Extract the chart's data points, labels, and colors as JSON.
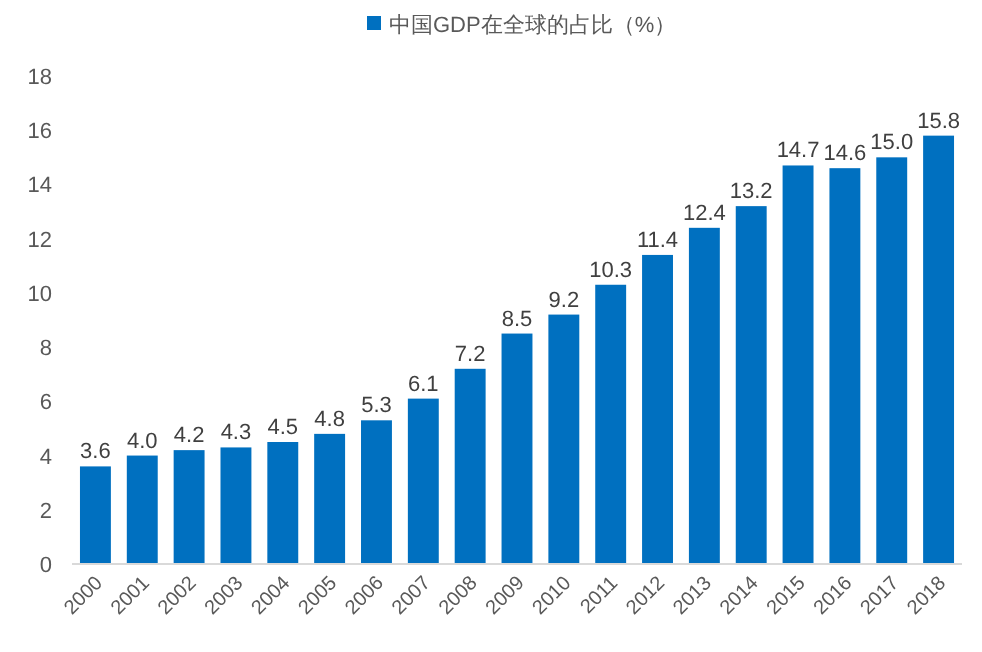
{
  "chart_data": {
    "type": "bar",
    "categories": [
      "2000",
      "2001",
      "2002",
      "2003",
      "2004",
      "2005",
      "2006",
      "2007",
      "2008",
      "2009",
      "2010",
      "2011",
      "2012",
      "2013",
      "2014",
      "2015",
      "2016",
      "2017",
      "2018"
    ],
    "series": [
      {
        "name": "中国GDP在全球的占比（%）",
        "color": "#0070c0",
        "values": [
          3.6,
          4.0,
          4.2,
          4.3,
          4.5,
          4.8,
          5.3,
          6.1,
          7.2,
          8.5,
          9.2,
          10.3,
          11.4,
          12.4,
          13.2,
          14.7,
          14.6,
          15.0,
          15.8
        ],
        "value_labels": [
          "3.6",
          "4.0",
          "4.2",
          "4.3",
          "4.5",
          "4.8",
          "5.3",
          "6.1",
          "7.2",
          "8.5",
          "9.2",
          "10.3",
          "11.4",
          "12.4",
          "13.2",
          "14.7",
          "14.6",
          "15.0",
          "15.8"
        ]
      }
    ],
    "ylim": [
      0,
      18
    ],
    "yticks": [
      0,
      2,
      4,
      6,
      8,
      10,
      12,
      14,
      16,
      18
    ],
    "legend": "top",
    "grid": false
  }
}
